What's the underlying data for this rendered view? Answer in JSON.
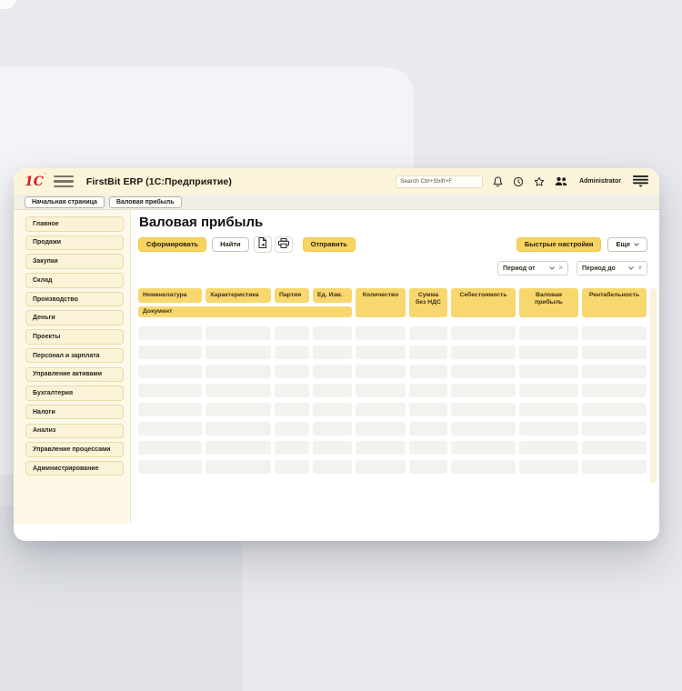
{
  "colors": {
    "brand_red": "#d01b2a",
    "accent_yellow": "#f7d45f",
    "table_header_yellow": "#f8d76e",
    "header_cream": "#fbf3da"
  },
  "app": {
    "logo": "1С",
    "title": "FirstBit ERP (1С:Предприятие)",
    "search_placeholder": "Search Ctrl+Shift+F",
    "user": "Administrator"
  },
  "tabs": [
    {
      "key": "home-page",
      "label": "Начальная страница"
    },
    {
      "key": "gross-profit",
      "label": "Валовая прибыль"
    }
  ],
  "sidebar": {
    "items": [
      {
        "key": "main",
        "label": "Главное"
      },
      {
        "key": "sales",
        "label": "Продажи"
      },
      {
        "key": "purchases",
        "label": "Закупки"
      },
      {
        "key": "warehouse",
        "label": "Склад"
      },
      {
        "key": "production",
        "label": "Производство"
      },
      {
        "key": "money",
        "label": "Деньги"
      },
      {
        "key": "projects",
        "label": "Проекты"
      },
      {
        "key": "hr-payroll",
        "label": "Персонал и зарплата"
      },
      {
        "key": "asset-management",
        "label": "Управление активами"
      },
      {
        "key": "accounting",
        "label": "Бухгалтерия"
      },
      {
        "key": "taxes",
        "label": "Налоги"
      },
      {
        "key": "analysis",
        "label": "Анализ"
      },
      {
        "key": "process-management",
        "label": "Управление процессами"
      },
      {
        "key": "administration",
        "label": "Администрирование"
      }
    ]
  },
  "report": {
    "title": "Валовая прибыль",
    "toolbar": {
      "generate": "Сформировать",
      "find": "Найти",
      "send": "Отправить",
      "quick_settings": "Быстрые настройки",
      "more": "Еще"
    },
    "filters": {
      "period_from": "Период от",
      "period_to": "Период до"
    },
    "table": {
      "columns": [
        {
          "key": "nomenclature",
          "label": "Номенклатура",
          "tall": false
        },
        {
          "key": "characteristic",
          "label": "Характеристика",
          "tall": false
        },
        {
          "key": "batch",
          "label": "Партия",
          "tall": false
        },
        {
          "key": "unit",
          "label": "Ед. Изм.",
          "tall": false
        },
        {
          "key": "quantity",
          "label": "Количество",
          "tall": true
        },
        {
          "key": "amount-no-vat",
          "label": "Сумма без НДС",
          "tall": true
        },
        {
          "key": "cost",
          "label": "Себестоимость",
          "tall": true
        },
        {
          "key": "gross-profit",
          "label": "Валовая прибыль",
          "tall": true
        },
        {
          "key": "profitability",
          "label": "Рентабельность",
          "tall": true
        }
      ],
      "subheader": "Документ",
      "skeleton_rows": 8
    }
  }
}
